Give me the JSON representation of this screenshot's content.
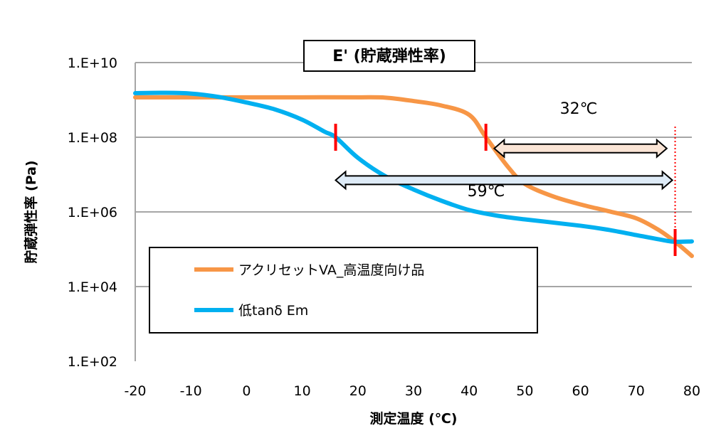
{
  "chart_data": {
    "type": "line",
    "title": "E' (貯蔵弾性率)",
    "xlabel": "測定温度 (℃)",
    "ylabel": "貯蔵弾性率 (Pa)",
    "xlim": [
      -20,
      80
    ],
    "ylim_log10": [
      2,
      10
    ],
    "y_scale": "log",
    "x_ticks": [
      "-20",
      "-10",
      "0",
      "10",
      "20",
      "30",
      "40",
      "50",
      "60",
      "70",
      "80"
    ],
    "x_tick_values": [
      -20,
      -10,
      0,
      10,
      20,
      30,
      40,
      50,
      60,
      70,
      80
    ],
    "y_ticks": [
      "1.E+10",
      "1.E+08",
      "1.E+06",
      "1.E+04",
      "1.E+02"
    ],
    "y_tick_values_log10": [
      10,
      8,
      6,
      4,
      2
    ],
    "grid": "horizontal",
    "legend_placement": "lower-left",
    "series": [
      {
        "name": "アクリセットVA_高温度向け品",
        "color": "#F79646",
        "x": [
          -20,
          -10,
          0,
          10,
          20,
          25,
          30,
          35,
          40,
          43,
          47,
          50,
          55,
          60,
          65,
          70,
          74,
          77,
          80
        ],
        "log10_y": [
          9.07,
          9.07,
          9.07,
          9.07,
          9.07,
          9.06,
          8.97,
          8.85,
          8.6,
          8.0,
          7.2,
          6.75,
          6.42,
          6.2,
          6.02,
          5.83,
          5.52,
          5.2,
          4.82
        ]
      },
      {
        "name": "低tanδ Em",
        "color": "#00B0F0",
        "x": [
          -20,
          -15,
          -10,
          -5,
          0,
          5,
          10,
          14,
          16,
          20,
          25,
          30,
          35,
          40,
          45,
          50,
          60,
          65,
          70,
          75,
          77,
          80
        ],
        "log10_y": [
          9.18,
          9.19,
          9.17,
          9.08,
          8.93,
          8.75,
          8.47,
          8.15,
          8.0,
          7.45,
          6.95,
          6.6,
          6.3,
          6.05,
          5.9,
          5.8,
          5.63,
          5.52,
          5.38,
          5.24,
          5.2,
          5.21
        ]
      }
    ],
    "annotations": {
      "markers_x": [
        16,
        43,
        77
      ],
      "marker_color": "#FF0000",
      "range_32": {
        "label": "32℃",
        "from": 44.5,
        "to": 75.5,
        "log10_y": 7.7,
        "fill": "#FBE5D6"
      },
      "range_59": {
        "label": "59℃",
        "from": 16,
        "to": 76.5,
        "log10_y": 6.85,
        "fill": "#DEEBF7"
      },
      "dotted_x": 77
    }
  }
}
